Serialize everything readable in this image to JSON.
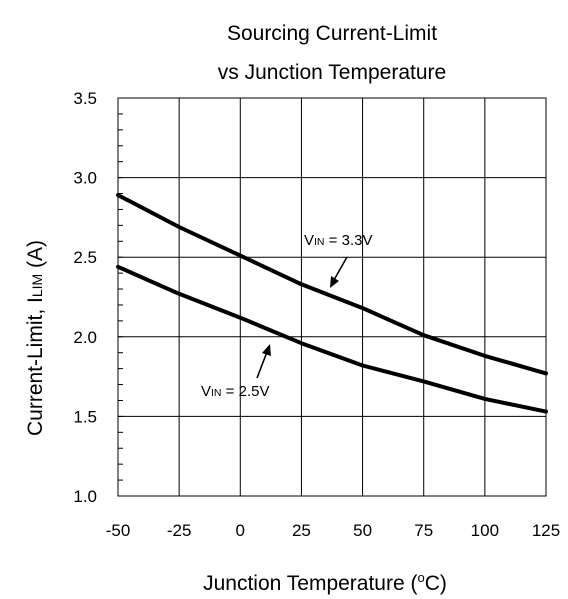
{
  "chart_data": {
    "type": "line",
    "title_line1": "Sourcing Current-Limit",
    "title_line2": "vs Junction Temperature",
    "xlabel_main": "Junction Temperature (",
    "xlabel_sup": "o",
    "xlabel_end": "C)",
    "ylabel_main": "Current-Limit, I",
    "ylabel_sub": "LIM",
    "ylabel_end": " (A)",
    "xlim": [
      -50,
      125
    ],
    "ylim": [
      1.0,
      3.5
    ],
    "x_ticks": [
      "-50",
      "-25",
      "0",
      "25",
      "50",
      "75",
      "100",
      "125"
    ],
    "y_ticks": [
      "1.0",
      "1.5",
      "2.0",
      "2.5",
      "3.0",
      "3.5"
    ],
    "grid": true,
    "series": [
      {
        "name": "VIN = 3.3V",
        "x": [
          -50,
          -25,
          0,
          25,
          50,
          75,
          100,
          125
        ],
        "y": [
          2.89,
          2.69,
          2.51,
          2.33,
          2.18,
          2.01,
          1.88,
          1.77
        ]
      },
      {
        "name": "VIN = 2.5V",
        "x": [
          -50,
          -25,
          0,
          25,
          50,
          75,
          100,
          125
        ],
        "y": [
          2.44,
          2.27,
          2.12,
          1.96,
          1.82,
          1.72,
          1.61,
          1.53
        ]
      }
    ],
    "annotations": [
      {
        "v": "V",
        "sub": "IN",
        "rest": " = 3.3V",
        "series": 0
      },
      {
        "v": "V",
        "sub": "IN",
        "rest": " = 2.5V",
        "series": 1
      }
    ]
  }
}
